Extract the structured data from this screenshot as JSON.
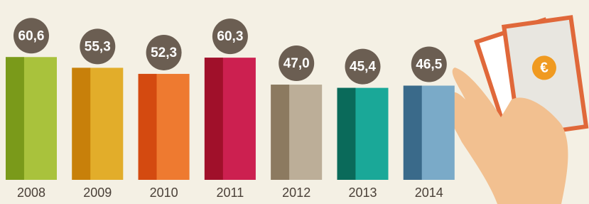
{
  "chart_data": {
    "type": "bar",
    "categories": [
      "2008",
      "2009",
      "2010",
      "2011",
      "2012",
      "2013",
      "2014"
    ],
    "values": [
      60.6,
      55.3,
      52.3,
      60.3,
      47.0,
      45.4,
      46.5
    ],
    "value_labels": [
      "60,6",
      "55,3",
      "52,3",
      "60,3",
      "47,0",
      "45,4",
      "46,5"
    ],
    "colors": [
      "#a9c23c",
      "#e2ad2a",
      "#ee7a30",
      "#cc2050",
      "#bcae98",
      "#1aa898",
      "#7aaac8"
    ],
    "dark_colors": [
      "#7a9a1a",
      "#c8800a",
      "#d44a10",
      "#a0102a",
      "#8c7a60",
      "#0a6a5a",
      "#3a6a8a"
    ],
    "label_color": "#6b5e52",
    "currency_symbol": "€"
  }
}
